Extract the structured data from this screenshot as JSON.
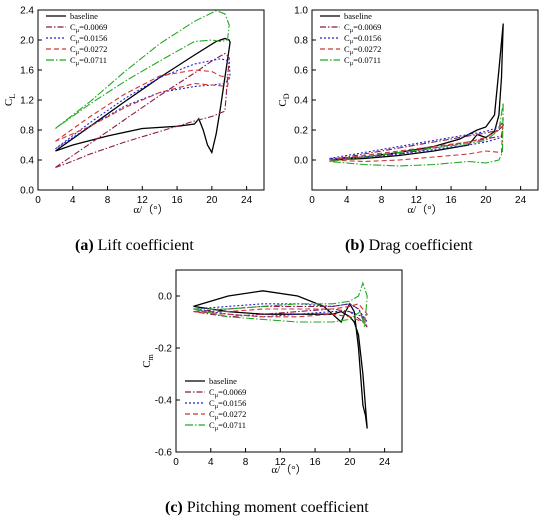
{
  "colors": {
    "baseline": "#000000",
    "cu0069": "#8b1a4a",
    "cu0156": "#2222cc",
    "cu0272": "#cc3333",
    "cu0711": "#22aa22"
  },
  "legend_labels": {
    "baseline": "baseline",
    "cu0069": "=0.0069",
    "cu0156": "=0.0156",
    "cu0272": "=0.0272",
    "cu0711": "=0.0711",
    "c_letter": "C",
    "mu_sub": "μ"
  },
  "chart_data": [
    {
      "type": "line",
      "id": "lift",
      "caption_letter": "(a)",
      "caption_text": " Lift coefficient",
      "xlabel": "α/（°）",
      "ylabel_base": "C",
      "ylabel_sub": "L",
      "xlim": [
        0,
        26
      ],
      "ylim": [
        0,
        2.4
      ],
      "xticks": [
        0,
        4,
        8,
        12,
        16,
        20,
        24
      ],
      "yticks": [
        0.0,
        0.4,
        0.8,
        1.2,
        1.6,
        2.0,
        2.4
      ],
      "ytick_labels": [
        "0.0",
        "0.4",
        "0.8",
        "1.2",
        "1.6",
        "2.0",
        "2.4"
      ],
      "grid": false,
      "legend_position": "top-left",
      "series": [
        {
          "name": "baseline",
          "key": "baseline",
          "dash": "",
          "x": [
            2,
            6,
            10,
            14,
            18,
            20.5,
            21.5,
            22,
            22.1,
            21.5,
            21,
            20.5,
            20,
            19.5,
            19,
            18.5,
            18,
            16,
            12,
            8,
            4,
            2
          ],
          "y": [
            0.52,
            0.85,
            1.18,
            1.5,
            1.8,
            1.98,
            2.02,
            2.0,
            1.97,
            1.5,
            1.1,
            0.75,
            0.5,
            0.6,
            0.8,
            0.95,
            0.88,
            0.85,
            0.82,
            0.72,
            0.6,
            0.52
          ]
        },
        {
          "name": "=0.0069",
          "key": "cu0069",
          "dash": "6,2,1.5,2",
          "x": [
            2,
            6,
            10,
            14,
            18,
            20,
            21.5,
            22,
            21.5,
            20,
            18,
            14,
            10,
            6,
            3,
            2
          ],
          "y": [
            0.3,
            0.62,
            0.94,
            1.26,
            1.56,
            1.72,
            1.82,
            1.76,
            1.05,
            0.98,
            0.92,
            0.78,
            0.64,
            0.48,
            0.34,
            0.3
          ]
        },
        {
          "name": "=0.0156",
          "key": "cu0156",
          "dash": "2,2",
          "x": [
            2,
            6,
            10,
            14,
            18,
            21,
            22,
            22.1,
            21.5,
            20,
            18,
            14,
            10,
            6,
            2
          ],
          "y": [
            0.55,
            0.9,
            1.22,
            1.5,
            1.68,
            1.75,
            1.72,
            1.5,
            1.42,
            1.4,
            1.38,
            1.3,
            1.12,
            0.85,
            0.55
          ]
        },
        {
          "name": "=0.0272",
          "key": "cu0272",
          "dash": "5,3",
          "x": [
            2,
            6,
            10,
            14,
            18,
            20,
            21,
            22,
            21.8,
            20,
            18,
            14,
            10,
            6,
            2
          ],
          "y": [
            0.65,
            0.98,
            1.28,
            1.52,
            1.6,
            1.58,
            1.52,
            1.5,
            1.38,
            1.4,
            1.42,
            1.3,
            1.1,
            0.85,
            0.65
          ]
        },
        {
          "name": "=0.0711",
          "key": "cu0711",
          "dash": "8,2,1.5,2",
          "x": [
            2,
            6,
            10,
            14,
            18,
            20.5,
            21.5,
            22,
            21.8,
            21,
            20,
            18,
            14,
            10,
            6,
            2
          ],
          "y": [
            0.82,
            1.18,
            1.58,
            1.95,
            2.25,
            2.39,
            2.35,
            2.2,
            2.0,
            1.98,
            2.0,
            1.98,
            1.72,
            1.45,
            1.15,
            0.82
          ]
        }
      ]
    },
    {
      "type": "line",
      "id": "drag",
      "caption_letter": "(b)",
      "caption_text": " Drag coefficient",
      "xlabel": "α/（°）",
      "ylabel_base": "C",
      "ylabel_sub": "D",
      "xlim": [
        0,
        26
      ],
      "ylim": [
        -0.2,
        1.0
      ],
      "xticks": [
        0,
        4,
        8,
        12,
        16,
        20,
        24
      ],
      "yticks": [
        0.0,
        0.2,
        0.4,
        0.6,
        0.8,
        1.0
      ],
      "ytick_labels": [
        "0.0",
        "0.2",
        "0.4",
        "0.6",
        "0.8",
        "1.0"
      ],
      "grid": false,
      "legend_position": "top-left",
      "series": [
        {
          "name": "baseline",
          "key": "baseline",
          "dash": "",
          "x": [
            2,
            6,
            10,
            14,
            17,
            19,
            20,
            21,
            21.5,
            22,
            21.8,
            21.5,
            21,
            20.5,
            20,
            19,
            18,
            14,
            10,
            6,
            2
          ],
          "y": [
            0.0,
            0.02,
            0.05,
            0.09,
            0.14,
            0.2,
            0.22,
            0.3,
            0.6,
            0.91,
            0.55,
            0.3,
            0.19,
            0.17,
            0.15,
            0.17,
            0.1,
            0.06,
            0.03,
            0.01,
            0.0
          ]
        },
        {
          "name": "=0.0069",
          "key": "cu0069",
          "dash": "6,2,1.5,2",
          "x": [
            2,
            6,
            10,
            14,
            18,
            20,
            21.5,
            22,
            21.8,
            20,
            18,
            14,
            10,
            6,
            2
          ],
          "y": [
            0.0,
            0.04,
            0.08,
            0.12,
            0.16,
            0.18,
            0.2,
            0.23,
            0.16,
            0.14,
            0.12,
            0.08,
            0.04,
            0.02,
            0.0
          ]
        },
        {
          "name": "=0.0156",
          "key": "cu0156",
          "dash": "2,2",
          "x": [
            2,
            6,
            10,
            14,
            18,
            20,
            21.5,
            22,
            21.8,
            20,
            18,
            14,
            10,
            6,
            2
          ],
          "y": [
            0.01,
            0.05,
            0.09,
            0.13,
            0.17,
            0.19,
            0.22,
            0.25,
            0.15,
            0.12,
            0.1,
            0.07,
            0.04,
            0.02,
            0.01
          ]
        },
        {
          "name": "=0.0272",
          "key": "cu0272",
          "dash": "5,3",
          "x": [
            2,
            6,
            10,
            14,
            18,
            20,
            21.5,
            22,
            21.8,
            20,
            18,
            14,
            10,
            6,
            2
          ],
          "y": [
            0.0,
            0.03,
            0.06,
            0.09,
            0.12,
            0.15,
            0.2,
            0.28,
            0.05,
            0.06,
            0.04,
            0.02,
            0.0,
            -0.01,
            0.0
          ]
        },
        {
          "name": "=0.0711",
          "key": "cu0711",
          "dash": "8,2,1.5,2",
          "x": [
            2,
            6,
            10,
            14,
            18,
            20,
            21.5,
            22,
            21.9,
            21.5,
            20,
            18,
            14,
            10,
            6,
            2
          ],
          "y": [
            -0.01,
            0.02,
            0.05,
            0.08,
            0.11,
            0.13,
            0.2,
            0.38,
            0.05,
            0.0,
            -0.02,
            -0.01,
            -0.03,
            -0.04,
            -0.03,
            -0.01
          ]
        }
      ]
    },
    {
      "type": "line",
      "id": "moment",
      "caption_letter": "(c)",
      "caption_text": " Pitching moment coefficient",
      "xlabel": "α/（°）",
      "ylabel_base": "C",
      "ylabel_sub": "m",
      "xlim": [
        0,
        26
      ],
      "ylim": [
        -0.6,
        0.1
      ],
      "xticks": [
        0,
        4,
        8,
        12,
        16,
        20,
        24
      ],
      "yticks": [
        -0.6,
        -0.4,
        -0.2,
        0.0
      ],
      "ytick_labels": [
        "-0.6",
        "-0.4",
        "-0.2",
        "0.0"
      ],
      "grid": false,
      "legend_position": "bottom-left",
      "series": [
        {
          "name": "baseline",
          "key": "baseline",
          "dash": "",
          "x": [
            2,
            6,
            10,
            14,
            17,
            18,
            19,
            19.5,
            20,
            20.5,
            21,
            21.5,
            21.8,
            22,
            21.5,
            21,
            20.5,
            20,
            19,
            18,
            14,
            10,
            6,
            2
          ],
          "y": [
            -0.04,
            0.0,
            0.02,
            0.0,
            -0.04,
            -0.07,
            -0.1,
            -0.06,
            -0.03,
            -0.06,
            -0.2,
            -0.42,
            -0.46,
            -0.51,
            -0.3,
            -0.15,
            -0.1,
            -0.08,
            -0.06,
            -0.07,
            -0.07,
            -0.07,
            -0.06,
            -0.04
          ]
        },
        {
          "name": "=0.0069",
          "key": "cu0069",
          "dash": "6,2,1.5,2",
          "x": [
            2,
            6,
            10,
            14,
            18,
            20,
            21,
            22,
            21.5,
            20,
            18,
            14,
            10,
            6,
            2
          ],
          "y": [
            -0.06,
            -0.05,
            -0.04,
            -0.04,
            -0.04,
            -0.03,
            -0.05,
            -0.12,
            -0.1,
            -0.06,
            -0.05,
            -0.06,
            -0.07,
            -0.08,
            -0.06
          ]
        },
        {
          "name": "=0.0156",
          "key": "cu0156",
          "dash": "2,2",
          "x": [
            2,
            6,
            10,
            14,
            18,
            20,
            21,
            22,
            21.5,
            20,
            18,
            14,
            10,
            6,
            2
          ],
          "y": [
            -0.05,
            -0.04,
            -0.03,
            -0.03,
            -0.04,
            -0.03,
            -0.05,
            -0.1,
            -0.08,
            -0.06,
            -0.06,
            -0.07,
            -0.08,
            -0.07,
            -0.05
          ]
        },
        {
          "name": "=0.0272",
          "key": "cu0272",
          "dash": "5,3",
          "x": [
            2,
            6,
            10,
            14,
            18,
            20,
            21,
            22,
            21.5,
            20,
            18,
            14,
            10,
            6,
            2
          ],
          "y": [
            -0.06,
            -0.06,
            -0.05,
            -0.05,
            -0.05,
            -0.04,
            -0.03,
            -0.07,
            -0.1,
            -0.08,
            -0.07,
            -0.08,
            -0.08,
            -0.07,
            -0.06
          ]
        },
        {
          "name": "=0.0711",
          "key": "cu0711",
          "dash": "8,2,1.5,2",
          "x": [
            2,
            6,
            10,
            14,
            18,
            20,
            21,
            21.5,
            22,
            21.7,
            21.2,
            20,
            18,
            14,
            10,
            6,
            2
          ],
          "y": [
            -0.05,
            -0.05,
            -0.04,
            -0.03,
            -0.03,
            -0.02,
            0.0,
            0.05,
            0.0,
            -0.12,
            -0.06,
            -0.09,
            -0.1,
            -0.1,
            -0.09,
            -0.08,
            -0.05
          ]
        }
      ]
    }
  ]
}
